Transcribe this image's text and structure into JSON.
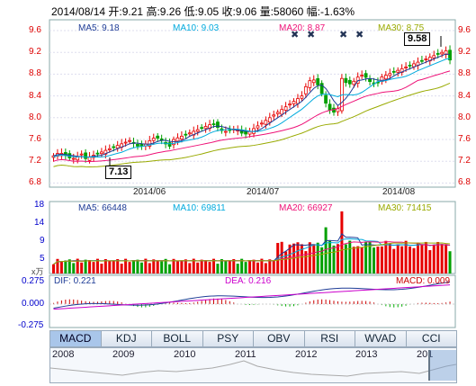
{
  "header": {
    "date": "2014/08/14",
    "open": "开:9.21",
    "high": "高:9.26",
    "low": "低:9.05",
    "close": "收:9.06",
    "volume": "量:58060",
    "change": "幅:-1.63%"
  },
  "price_panel": {
    "ma5": "MA5: 9.18",
    "ma10": "MA10: 9.03",
    "ma20": "MA20: 8.87",
    "ma30": "MA30: 8.75",
    "y_ticks": [
      "9.6",
      "9.2",
      "8.8",
      "8.4",
      "8.0",
      "7.6",
      "7.2",
      "6.8"
    ],
    "high_marker": "9.58",
    "low_marker": "7.13",
    "dates": [
      "2014/06",
      "2014/07",
      "2014/08"
    ]
  },
  "volume_panel": {
    "ma5": "MA5: 66448",
    "ma10": "MA10: 69811",
    "ma20": "MA20: 66927",
    "ma30": "MA30: 71415",
    "y_ticks": [
      "18",
      "14",
      "9",
      "5"
    ],
    "unit": "x万"
  },
  "macd_panel": {
    "dif": "DIF: 0.221",
    "dea": "DEA: 0.216",
    "macd": "MACD: 0.009",
    "y_ticks": [
      "0.275",
      "0.000",
      "-0.275"
    ]
  },
  "tabs": [
    "MACD",
    "KDJ",
    "BOLL",
    "PSY",
    "OBV",
    "RSI",
    "WVAD",
    "CCI"
  ],
  "overview": {
    "years": [
      "2008",
      "2009",
      "2010",
      "2011",
      "2012",
      "2013",
      "201"
    ]
  },
  "colors": {
    "up": "#e60000",
    "down": "#00a000",
    "ma5": "#1e3c96",
    "ma10": "#00aadd",
    "ma20": "#ee1177",
    "ma30": "#99aa00"
  }
}
